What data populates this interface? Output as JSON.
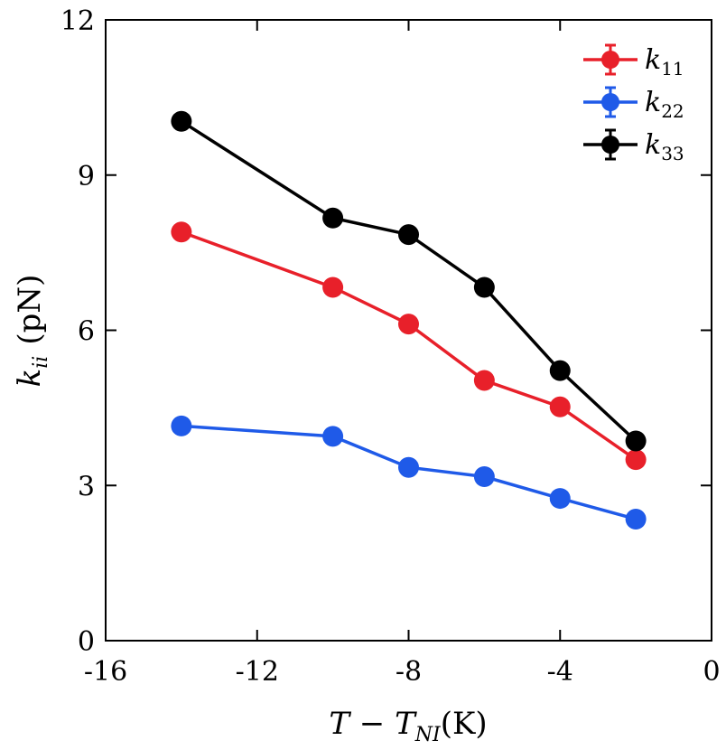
{
  "chart_data": {
    "type": "line",
    "xlabel": "T − T_NI(K)",
    "xlabel_parts": {
      "main": "T − T",
      "sub": "NI",
      "unit": "(K)"
    },
    "ylabel": "k_ii (pN)",
    "ylabel_parts": {
      "main": "k",
      "sub": "ii",
      "unit": "(pN)"
    },
    "xlim": [
      -16,
      0
    ],
    "ylim": [
      0,
      12
    ],
    "xticks": [
      -16,
      -12,
      -8,
      -4,
      0
    ],
    "yticks": [
      0,
      3,
      6,
      9,
      12
    ],
    "grid": false,
    "legend_position": "top-right",
    "x": [
      -14,
      -10,
      -8,
      -6,
      -4,
      -2
    ],
    "series": [
      {
        "name": "k11",
        "name_parts": {
          "main": "k",
          "sub": "11"
        },
        "color": "#e8202a",
        "values": [
          7.9,
          6.83,
          6.12,
          5.03,
          4.52,
          3.5
        ]
      },
      {
        "name": "k22",
        "name_parts": {
          "main": "k",
          "sub": "22"
        },
        "color": "#1f5ae8",
        "values": [
          4.15,
          3.95,
          3.35,
          3.17,
          2.75,
          2.35
        ]
      },
      {
        "name": "k33",
        "name_parts": {
          "main": "k",
          "sub": "33"
        },
        "color": "#000000",
        "values": [
          10.04,
          8.17,
          7.85,
          6.83,
          5.22,
          3.86
        ]
      }
    ]
  }
}
